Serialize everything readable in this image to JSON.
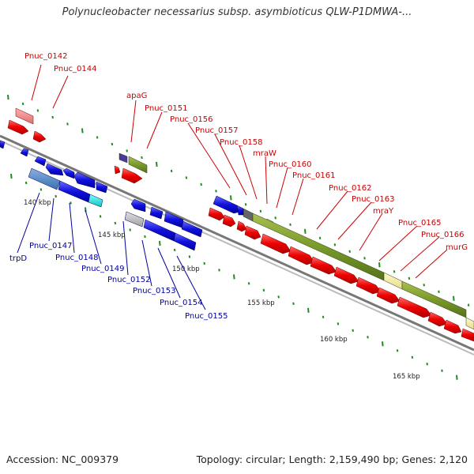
{
  "title": "Polynucleobacter necessarius subsp. asymbioticus QLW-P1DMWA-...",
  "accession": "Accession: NC_009379",
  "topology": "Topology: circular; Length: 2,159,490 bp; Genes: 2,120",
  "ticks": [
    "140 kbp",
    "145 kbp",
    "150 kbp",
    "155 kbp",
    "160 kbp",
    "165 kbp"
  ],
  "labels_forward": [
    "Pnuc_0142",
    "Pnuc_0144",
    "apaG",
    "Pnuc_0151",
    "Pnuc_0156",
    "Pnuc_0157",
    "Pnuc_0158",
    "mraW",
    "Pnuc_0160",
    "Pnuc_0161",
    "Pnuc_0162",
    "Pnuc_0163",
    "mraY",
    "Pnuc_0165",
    "Pnuc_0166",
    "murG"
  ],
  "labels_reverse": [
    "trpD",
    "Pnuc_0147",
    "Pnuc_0148",
    "Pnuc_0149",
    "Pnuc_0152",
    "Pnuc_0153",
    "Pnuc_0154",
    "Pnuc_0155"
  ],
  "colors": {
    "forward_cds": "#ee0000",
    "reverse_cds": "#1010dd",
    "forward_feature": "#7a9a2a",
    "feature_light": "#f0e69a",
    "backbone": "#888888"
  }
}
